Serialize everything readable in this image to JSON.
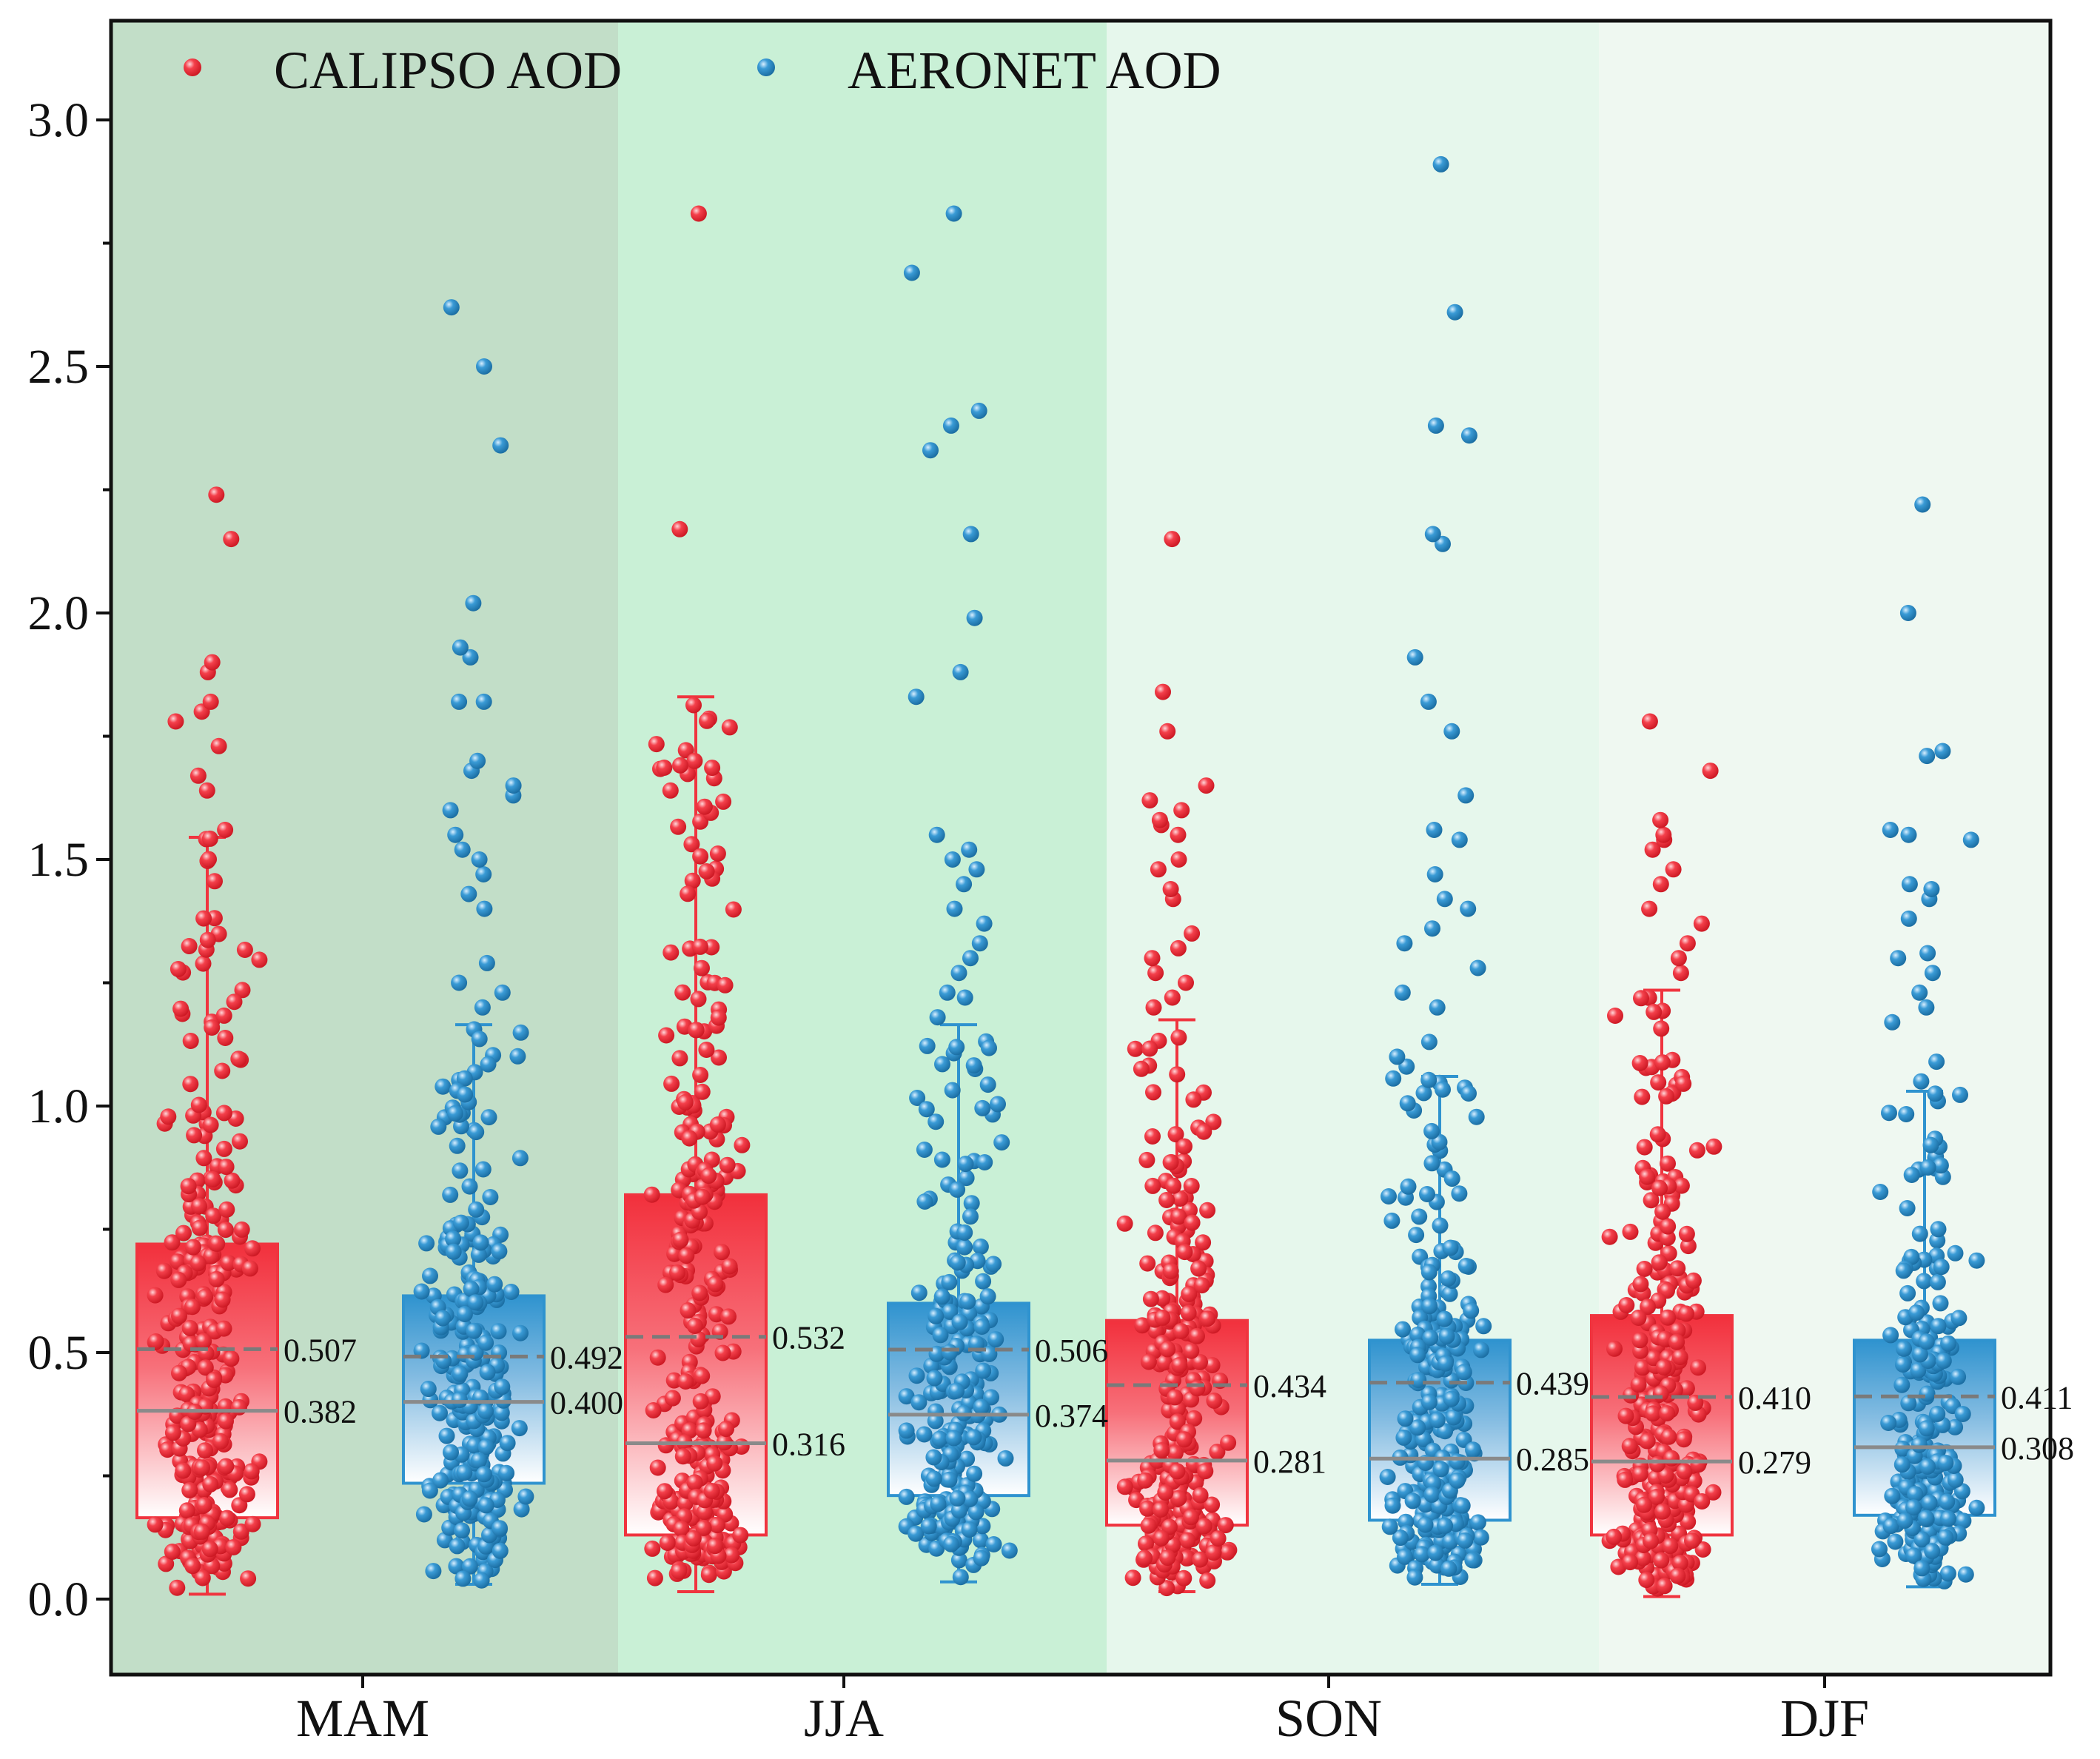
{
  "chart_data": {
    "type": "box-jitter",
    "title": "",
    "xlabel": "",
    "ylabel": "",
    "ylim": [
      -0.15,
      3.2
    ],
    "yticks": [
      0.0,
      0.5,
      1.0,
      1.5,
      2.0,
      2.5,
      3.0
    ],
    "ytick_labels": [
      "0.0",
      "0.5",
      "1.0",
      "1.5",
      "2.0",
      "2.5",
      "3.0"
    ],
    "legend_position": "top-left",
    "legend": [
      {
        "label": "CALIPSO AOD",
        "color": "#f0343f"
      },
      {
        "label": "AERONET AOD",
        "color": "#2f93cf"
      }
    ],
    "season_backgrounds": [
      "#c2dec8",
      "#c9f0d6",
      "#e6f7ec",
      "#eff8f1"
    ],
    "colors": {
      "calipso": "#f0343f",
      "calipso_dark": "#d61a26",
      "aeronet": "#2f93cf",
      "aeronet_dark": "#1f76aa",
      "median_line": "#8a8a8a",
      "mean_line": "#7a7a7a",
      "axis": "#111111"
    },
    "seasons": [
      {
        "label": "MAM",
        "series": [
          {
            "name": "CALIPSO AOD",
            "q1": 0.165,
            "median": 0.382,
            "mean": 0.507,
            "q3": 0.72,
            "whisker_low": 0.01,
            "whisker_high": 1.545,
            "min": 0.01,
            "max": 1.545,
            "n": 300,
            "outliers": [
              1.56,
              1.64,
              1.67,
              1.73,
              1.78,
              1.8,
              1.82,
              1.88,
              1.9,
              2.15,
              2.24
            ]
          },
          {
            "name": "AERONET AOD",
            "q1": 0.235,
            "median": 0.4,
            "mean": 0.492,
            "q3": 0.615,
            "whisker_low": 0.03,
            "whisker_high": 1.165,
            "min": 0.03,
            "max": 1.165,
            "n": 260,
            "outliers": [
              1.2,
              1.23,
              1.25,
              1.29,
              1.4,
              1.43,
              1.47,
              1.5,
              1.52,
              1.55,
              1.6,
              1.63,
              1.65,
              1.68,
              1.7,
              1.82,
              1.82,
              1.91,
              1.93,
              2.02,
              2.34,
              2.5,
              2.62
            ]
          }
        ]
      },
      {
        "label": "JJA",
        "series": [
          {
            "name": "CALIPSO AOD",
            "q1": 0.13,
            "median": 0.316,
            "mean": 0.532,
            "q3": 0.82,
            "whisker_low": 0.015,
            "whisker_high": 1.83,
            "min": 0.015,
            "max": 1.83,
            "n": 320,
            "outliers": [
              2.17,
              2.81
            ]
          },
          {
            "name": "AERONET AOD",
            "q1": 0.21,
            "median": 0.374,
            "mean": 0.506,
            "q3": 0.6,
            "whisker_low": 0.035,
            "whisker_high": 1.165,
            "min": 0.035,
            "max": 1.165,
            "n": 240,
            "outliers": [
              1.18,
              1.22,
              1.23,
              1.27,
              1.3,
              1.33,
              1.37,
              1.4,
              1.45,
              1.48,
              1.5,
              1.52,
              1.55,
              1.83,
              1.88,
              1.99,
              2.16,
              2.33,
              2.38,
              2.41,
              2.69,
              2.81
            ]
          }
        ]
      },
      {
        "label": "SON",
        "series": [
          {
            "name": "CALIPSO AOD",
            "q1": 0.15,
            "median": 0.281,
            "mean": 0.434,
            "q3": 0.565,
            "whisker_low": 0.015,
            "whisker_high": 1.175,
            "min": 0.015,
            "max": 1.175,
            "n": 300,
            "outliers": [
              1.2,
              1.22,
              1.25,
              1.27,
              1.3,
              1.32,
              1.35,
              1.42,
              1.44,
              1.48,
              1.5,
              1.55,
              1.57,
              1.58,
              1.6,
              1.62,
              1.65,
              1.76,
              1.84,
              2.15
            ]
          },
          {
            "name": "AERONET AOD",
            "q1": 0.16,
            "median": 0.285,
            "mean": 0.439,
            "q3": 0.525,
            "whisker_low": 0.03,
            "whisker_high": 1.06,
            "min": 0.03,
            "max": 1.06,
            "n": 300,
            "outliers": [
              1.08,
              1.1,
              1.13,
              1.2,
              1.23,
              1.28,
              1.33,
              1.36,
              1.4,
              1.42,
              1.47,
              1.54,
              1.56,
              1.63,
              1.76,
              1.82,
              1.91,
              2.14,
              2.16,
              2.36,
              2.38,
              2.61,
              2.91
            ]
          }
        ]
      },
      {
        "label": "DJF",
        "series": [
          {
            "name": "CALIPSO AOD",
            "q1": 0.13,
            "median": 0.279,
            "mean": 0.41,
            "q3": 0.575,
            "whisker_low": 0.005,
            "whisker_high": 1.235,
            "min": 0.005,
            "max": 1.235,
            "n": 300,
            "outliers": [
              1.27,
              1.3,
              1.33,
              1.37,
              1.4,
              1.45,
              1.48,
              1.52,
              1.54,
              1.55,
              1.58,
              1.68,
              1.78
            ]
          },
          {
            "name": "AERONET AOD",
            "q1": 0.17,
            "median": 0.308,
            "mean": 0.411,
            "q3": 0.525,
            "whisker_low": 0.025,
            "whisker_high": 1.03,
            "min": 0.025,
            "max": 1.03,
            "n": 240,
            "outliers": [
              1.05,
              1.09,
              1.17,
              1.2,
              1.23,
              1.27,
              1.3,
              1.31,
              1.38,
              1.42,
              1.44,
              1.45,
              1.54,
              1.55,
              1.56,
              1.71,
              1.72,
              2.0,
              2.22
            ]
          }
        ]
      }
    ]
  }
}
